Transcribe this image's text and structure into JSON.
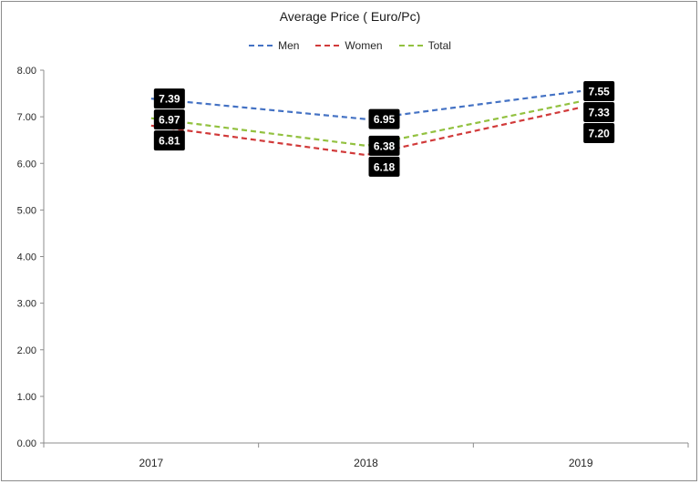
{
  "chart_data": {
    "type": "line",
    "title": "Average Price ( Euro/Pc)",
    "categories": [
      "2017",
      "2018",
      "2019"
    ],
    "ylim": [
      0,
      8
    ],
    "yticks": [
      "0.00",
      "1.00",
      "2.00",
      "3.00",
      "4.00",
      "5.00",
      "6.00",
      "7.00",
      "8.00"
    ],
    "grid": false,
    "legend_position": "top",
    "series": [
      {
        "name": "Men",
        "color": "#4472c4",
        "values": [
          7.39,
          6.95,
          7.55
        ],
        "labels": [
          "7.39",
          "6.95",
          "7.55"
        ]
      },
      {
        "name": "Women",
        "color": "#d13a3a",
        "values": [
          6.81,
          6.18,
          7.2
        ],
        "labels": [
          "6.81",
          "6.18",
          "7.20"
        ]
      },
      {
        "name": "Total",
        "color": "#92c13f",
        "values": [
          6.97,
          6.38,
          7.33
        ],
        "labels": [
          "6.97",
          "6.38",
          "7.33"
        ]
      }
    ]
  }
}
